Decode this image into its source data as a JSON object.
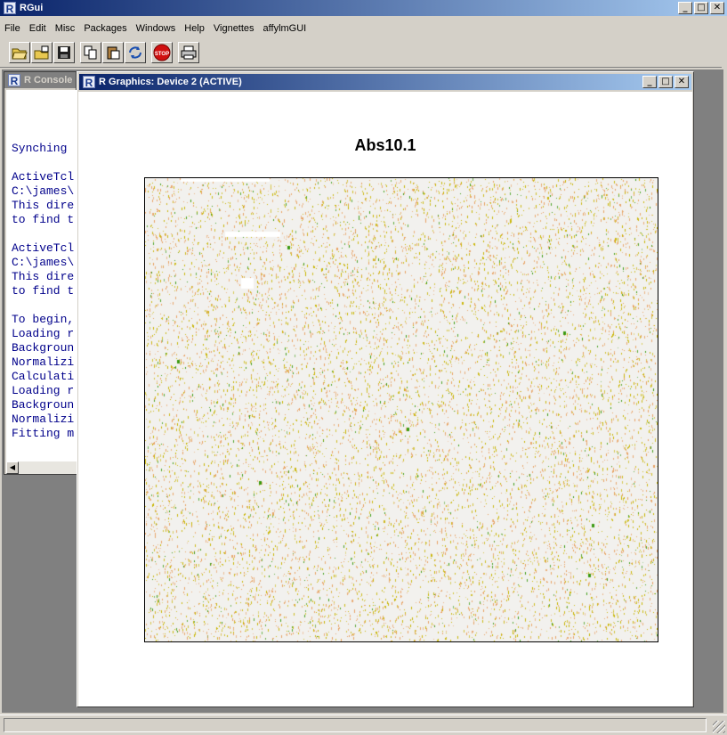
{
  "app": {
    "title": "RGui"
  },
  "menu": [
    "File",
    "Edit",
    "Misc",
    "Packages",
    "Windows",
    "Help",
    "Vignettes",
    "affylmGUI"
  ],
  "toolbar": {
    "buttons": [
      {
        "name": "open-script-icon",
        "glyph": "📂"
      },
      {
        "name": "load-workspace-icon",
        "glyph": "📤"
      },
      {
        "name": "save-workspace-icon",
        "glyph": "💾"
      },
      {
        "name": "copy-icon",
        "glyph": "⎘"
      },
      {
        "name": "paste-icon",
        "glyph": "📋"
      },
      {
        "name": "copy-paste-icon",
        "glyph": "⟳"
      },
      {
        "name": "stop-icon",
        "glyph": "STOP"
      },
      {
        "name": "print-icon",
        "glyph": "🖶"
      }
    ]
  },
  "console": {
    "title": "R Console",
    "lines": [
      "Synching",
      "",
      "ActiveTcl",
      "C:\\james\\",
      "This dire",
      "to find t",
      "",
      "ActiveTcl",
      "C:\\james\\",
      "This dire",
      "to find t",
      "",
      "To begin,",
      "Loading r",
      "Backgroun",
      "Normalizi",
      "Calculati",
      "Loading r",
      "Backgroun",
      "Normalizi",
      "Fitting m"
    ]
  },
  "graphics": {
    "title": "R Graphics: Device 2 (ACTIVE)",
    "plot_title": "Abs10.1"
  },
  "window_buttons": {
    "minimize": "_",
    "maximize": "□",
    "close": "✕"
  },
  "colors": {
    "title_active": "#0a246a",
    "plot_bg": "#f2f1ee",
    "speckle_yellow": "#c8b400",
    "speckle_orange": "#e8a060",
    "speckle_green": "#3a9a10"
  }
}
